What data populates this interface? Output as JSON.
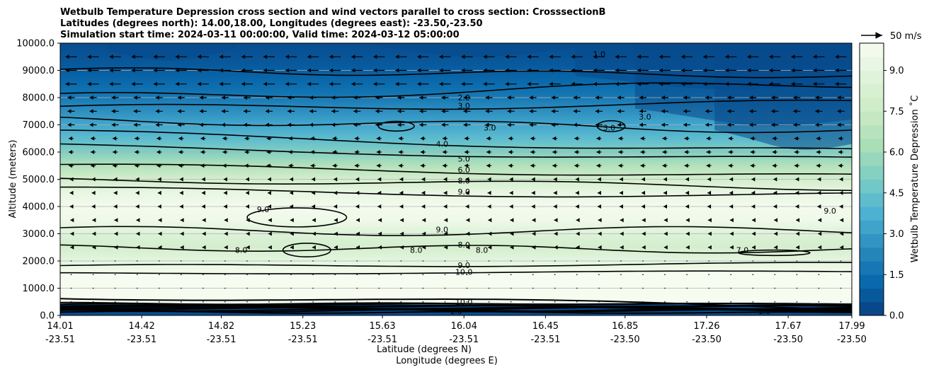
{
  "chart_data": {
    "type": "heatmap",
    "title_lines": [
      "Wetbulb Temperature Depression cross section and wind vectors parallel to cross section: CrosssectionB",
      "Latitudes (degrees north): 14.00,18.00, Longitudes (degrees east): -23.50,-23.50",
      "Simulation start time: 2024-03-11 00:00:00, Valid time: 2024-03-12 05:00:00"
    ],
    "ylabel": "Altitude (meters)",
    "xlabel_lat": "Latitude (degrees N)",
    "xlabel_lon": "Longitude (degrees E)",
    "ylim": [
      0,
      10000
    ],
    "y_ticks": [
      "0.0",
      "1000.0",
      "2000.0",
      "3000.0",
      "4000.0",
      "5000.0",
      "6000.0",
      "7000.0",
      "8000.0",
      "9000.0",
      "10000.0"
    ],
    "x_ticks_lat": [
      "14.01",
      "14.42",
      "14.82",
      "15.23",
      "15.63",
      "16.04",
      "16.45",
      "16.85",
      "17.26",
      "17.67",
      "17.99"
    ],
    "x_ticks_lon": [
      "-23.51",
      "-23.51",
      "-23.51",
      "-23.51",
      "-23.51",
      "-23.51",
      "-23.51",
      "-23.50",
      "-23.50",
      "-23.50",
      "-23.50"
    ],
    "colorbar": {
      "label": "Wetbulb Temperature Depression ˚C",
      "range": [
        0,
        10
      ],
      "ticks": [
        "0.0",
        "1.5",
        "3.0",
        "4.5",
        "6.0",
        "7.5",
        "9.0"
      ]
    },
    "quiver_key": "50 m/s",
    "contour_levels": [
      1.0,
      2.0,
      3.0,
      4.0,
      5.0,
      6.0,
      7.0,
      8.0,
      9.0,
      10.0
    ],
    "depression_profile": {
      "altitude_m": [
        0,
        500,
        1000,
        1500,
        2000,
        2500,
        3000,
        3500,
        4000,
        4500,
        5000,
        5500,
        6000,
        6500,
        7000,
        7500,
        8000,
        8500,
        9000,
        9500,
        10000
      ],
      "value_c": [
        0.5,
        11.0,
        10.8,
        10.2,
        9.0,
        8.0,
        8.6,
        9.6,
        9.8,
        9.2,
        8.0,
        6.6,
        5.2,
        4.2,
        3.4,
        2.6,
        1.8,
        1.3,
        0.9,
        0.6,
        0.4
      ]
    },
    "contour_labels": [
      {
        "text": "2.0",
        "x": 16.04,
        "y": 8000
      },
      {
        "text": "3.0",
        "x": 16.04,
        "y": 7700
      },
      {
        "text": "4.0",
        "x": 15.93,
        "y": 6300
      },
      {
        "text": "5.0",
        "x": 16.04,
        "y": 5750
      },
      {
        "text": "6.0",
        "x": 16.04,
        "y": 5350
      },
      {
        "text": "8.0",
        "x": 16.04,
        "y": 4950
      },
      {
        "text": "9.0",
        "x": 16.04,
        "y": 4550
      },
      {
        "text": "9.0",
        "x": 15.93,
        "y": 3150
      },
      {
        "text": "8.0",
        "x": 16.04,
        "y": 2600
      },
      {
        "text": "9.0",
        "x": 16.04,
        "y": 1850
      },
      {
        "text": "10.0",
        "x": 16.04,
        "y": 1600
      },
      {
        "text": "1.0",
        "x": 16.72,
        "y": 9600
      },
      {
        "text": "3.0",
        "x": 16.17,
        "y": 6900
      },
      {
        "text": "3.0",
        "x": 16.77,
        "y": 6900
      },
      {
        "text": "3.0",
        "x": 16.95,
        "y": 7300
      },
      {
        "text": "9.0",
        "x": 15.03,
        "y": 3900
      },
      {
        "text": "8.0",
        "x": 14.92,
        "y": 2400
      },
      {
        "text": "8.0",
        "x": 15.8,
        "y": 2400
      },
      {
        "text": "8.0",
        "x": 16.13,
        "y": 2400
      },
      {
        "text": "9.0",
        "x": 17.88,
        "y": 3850
      },
      {
        "text": "7.0",
        "x": 17.44,
        "y": 2400
      },
      {
        "text": "10.0",
        "x": 16.04,
        "y": 500
      },
      {
        "text": "1.0",
        "x": 16.0,
        "y": 150
      },
      {
        "text": "1.0",
        "x": 17.55,
        "y": 150
      }
    ]
  }
}
